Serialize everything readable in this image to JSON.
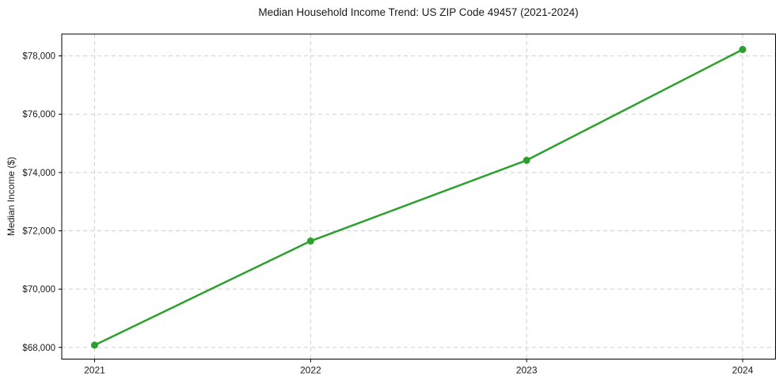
{
  "chart_data": {
    "type": "line",
    "title": "Median Household Income Trend: US ZIP Code 49457 (2021-2024)",
    "xlabel": "",
    "ylabel": "Median Income ($)",
    "categories": [
      "2021",
      "2022",
      "2023",
      "2024"
    ],
    "values": [
      68080,
      71650,
      74420,
      78220
    ],
    "ylim": [
      67600,
      78750
    ],
    "y_ticks": [
      {
        "value": 68000,
        "label": "$68,000"
      },
      {
        "value": 70000,
        "label": "$70,000"
      },
      {
        "value": 72000,
        "label": "$72,000"
      },
      {
        "value": 74000,
        "label": "$74,000"
      },
      {
        "value": 76000,
        "label": "$76,000"
      },
      {
        "value": 78000,
        "label": "$78,000"
      }
    ],
    "grid": true,
    "grid_style": "dashed",
    "legend": "none",
    "colors": {
      "line": "#2ca02c",
      "marker": "#2ca02c",
      "gridline": "#d0d0d0",
      "spine": "#000000",
      "text": "#1a1a1a",
      "background": "#ffffff"
    }
  }
}
